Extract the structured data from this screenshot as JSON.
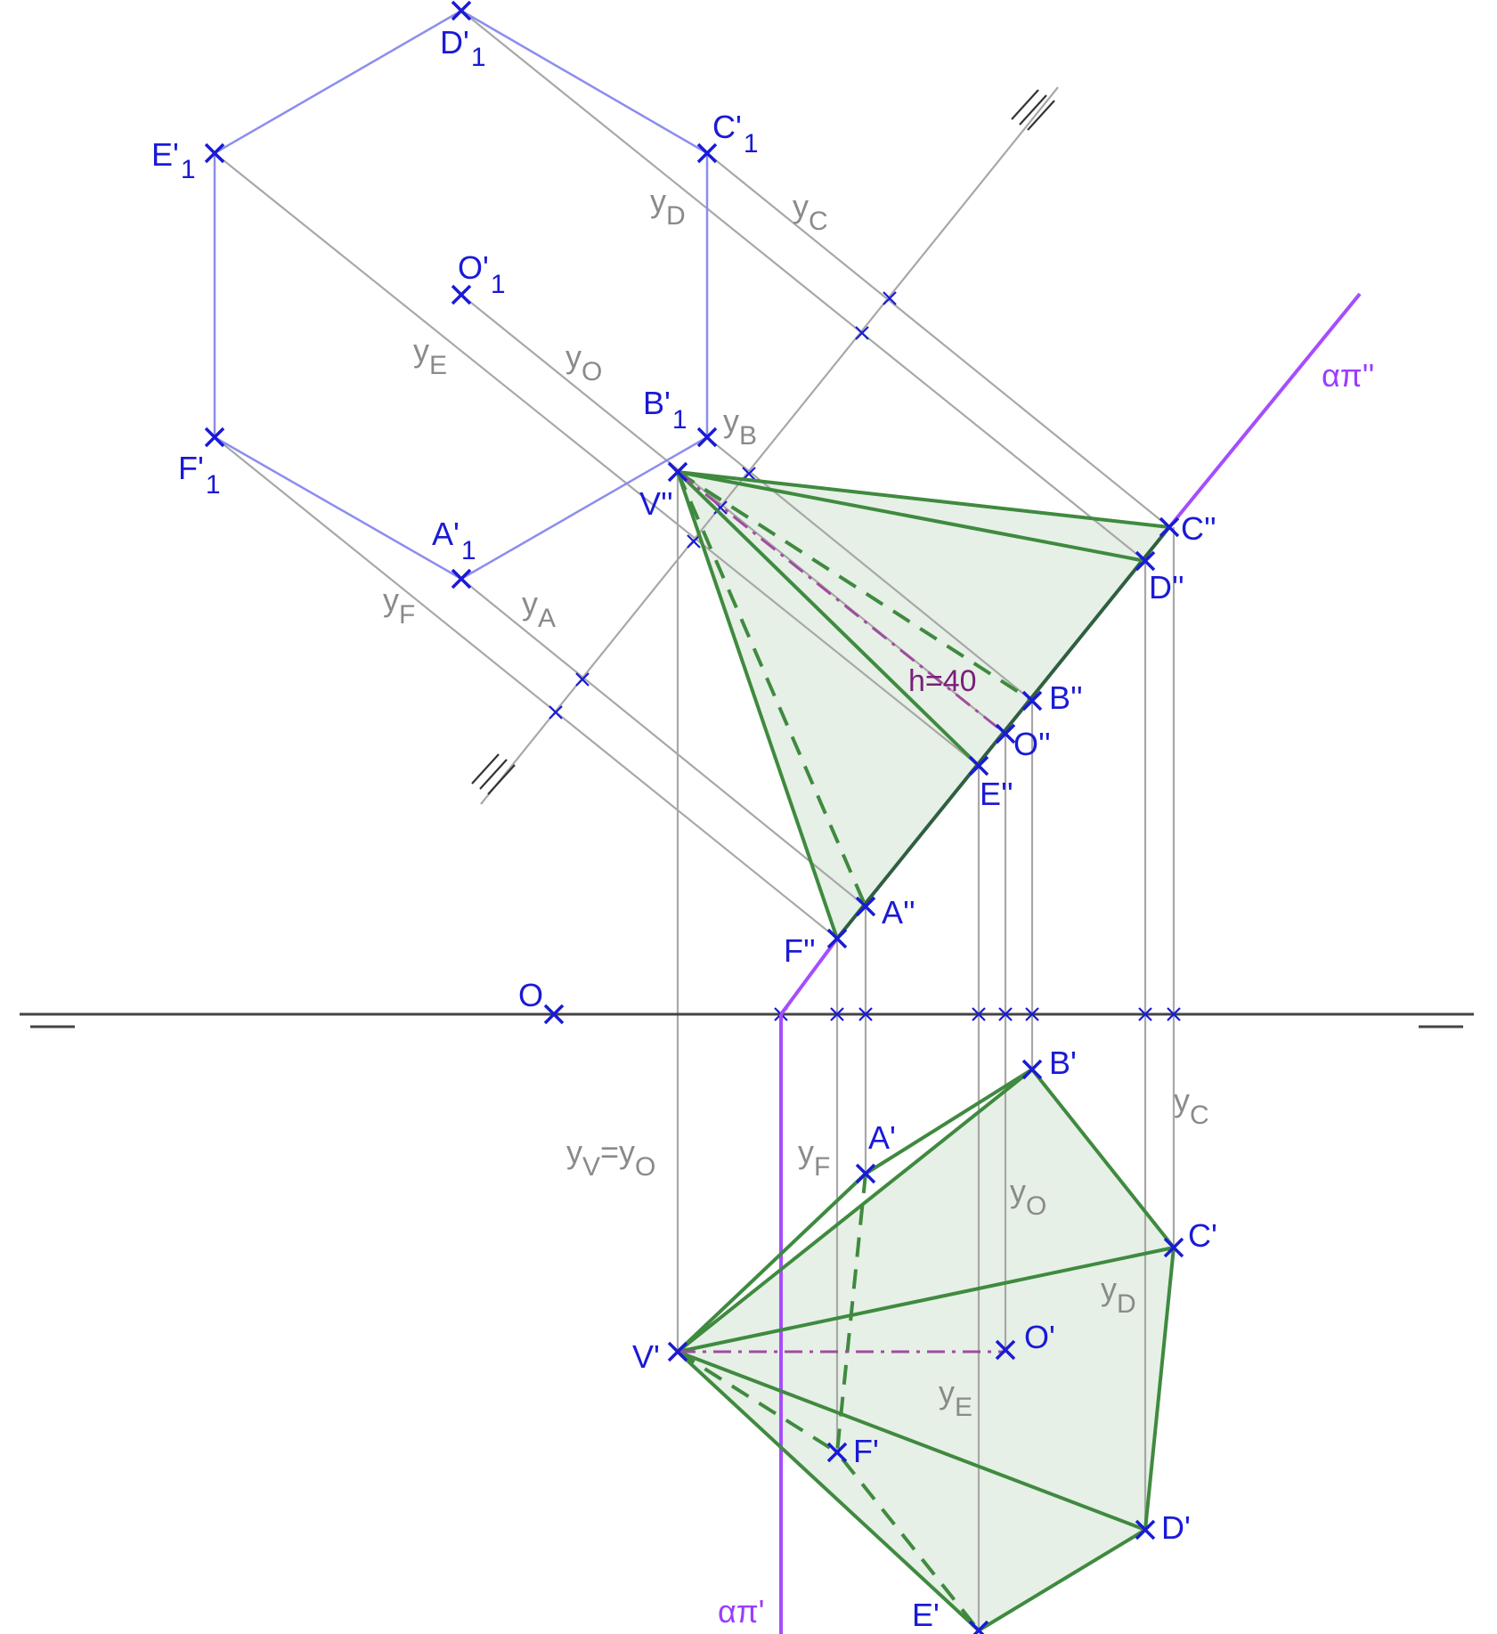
{
  "diagram": {
    "colors": {
      "construction": "#a8a8a8",
      "hexagon": "#8c8cf0",
      "pyramid_edge": "#3f8a3f",
      "pyramid_fill": "#e6f0e6",
      "point_marker": "#1a1ad6",
      "trace": "#a64dff",
      "axis": "#444444",
      "height_line": "#a04ca0"
    },
    "labels": {
      "O": "O",
      "D1": {
        "main": "D'",
        "sub": "1"
      },
      "E1": {
        "main": "E'",
        "sub": "1"
      },
      "C1": {
        "main": "C'",
        "sub": "1"
      },
      "O1": {
        "main": "O'",
        "sub": "1"
      },
      "B1": {
        "main": "B'",
        "sub": "1"
      },
      "F1": {
        "main": "F'",
        "sub": "1"
      },
      "A1": {
        "main": "A'",
        "sub": "1"
      },
      "V2": "V''",
      "C2": "C''",
      "D2": "D''",
      "B2": "B''",
      "O2": "O''",
      "E2": "E''",
      "A2": "A''",
      "F2": "F''",
      "B3": "B'",
      "A3": "A'",
      "C3": "C'",
      "V3": "V'",
      "O3": "O'",
      "F3": "F'",
      "D3": "D'",
      "E3": "E'",
      "trace_v": "απ''",
      "trace_h": "απ'",
      "height": "h=40"
    },
    "distances": {
      "yD": {
        "main": "y",
        "sub": "D"
      },
      "yC_top": {
        "main": "y",
        "sub": "C"
      },
      "yE_top": {
        "main": "y",
        "sub": "E"
      },
      "yO_top": {
        "main": "y",
        "sub": "O"
      },
      "yB": {
        "main": "y",
        "sub": "B"
      },
      "yF_top": {
        "main": "y",
        "sub": "F"
      },
      "yA": {
        "main": "y",
        "sub": "A"
      },
      "yV_eq_yO": {
        "y1": "y",
        "s1": "V",
        "eq": "=y",
        "s2": "O"
      },
      "yF_bot": {
        "main": "y",
        "sub": "F"
      },
      "yC_bot": {
        "main": "y",
        "sub": "C"
      },
      "yO_bot": {
        "main": "y",
        "sub": "O"
      },
      "yD_bot": {
        "main": "y",
        "sub": "D"
      },
      "yE_bot": {
        "main": "y",
        "sub": "E"
      }
    }
  }
}
